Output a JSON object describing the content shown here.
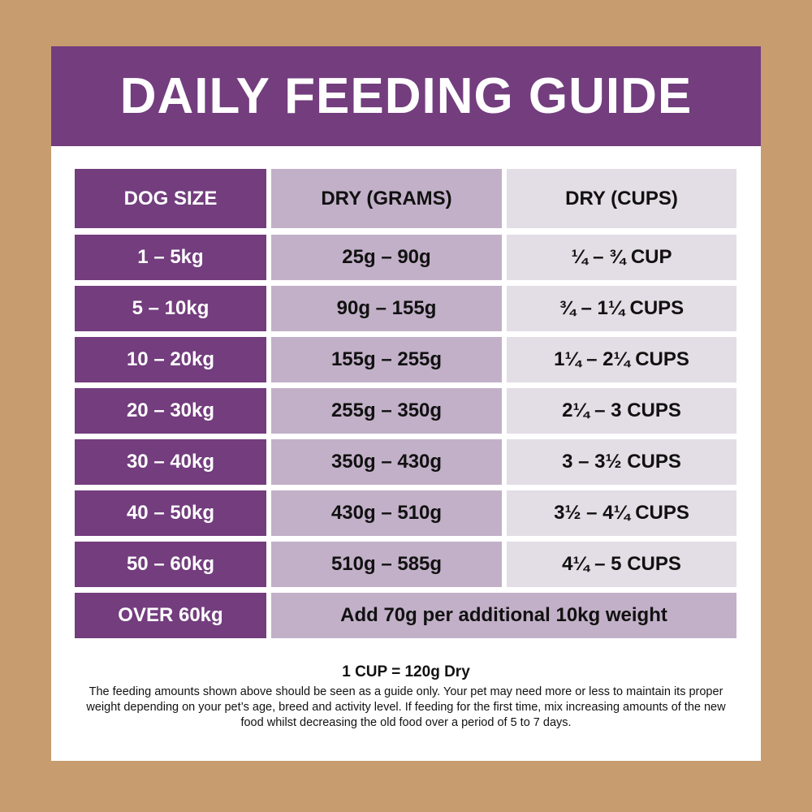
{
  "title": "DAILY FEEDING GUIDE",
  "columns": [
    "DOG SIZE",
    "DRY (GRAMS)",
    "DRY (CUPS)"
  ],
  "rows": [
    [
      "1 – 5kg",
      "25g – 90g",
      "¼ – ¾ CUP"
    ],
    [
      "5 – 10kg",
      "90g – 155g",
      "¾ – 1¼ CUPS"
    ],
    [
      "10 – 20kg",
      "155g – 255g",
      "1¼ – 2¼ CUPS"
    ],
    [
      "20 – 30kg",
      "255g – 350g",
      "2¼ – 3 CUPS"
    ],
    [
      "30 – 40kg",
      "350g – 430g",
      "3 – 3½ CUPS"
    ],
    [
      "40 – 50kg",
      "430g – 510g",
      "3½ – 4¼ CUPS"
    ],
    [
      "50 – 60kg",
      "510g – 585g",
      "4¼ – 5 CUPS"
    ]
  ],
  "last_row": {
    "size": "OVER 60kg",
    "note": "Add 70g per additional 10kg weight"
  },
  "conversion": "1 CUP = 120g Dry",
  "disclaimer": "The feeding amounts shown above should be seen as a guide only. Your pet may need more or less to maintain its proper weight depending on your pet’s age, breed and activity level. If feeding for the first time, mix increasing amounts of the new food whilst decreasing the old food over a period of 5 to 7 days.",
  "colors": {
    "purple": "#733d7e",
    "lavender": "#c2b0c8",
    "light": "#e3dde6",
    "background": "#c79d6f"
  }
}
